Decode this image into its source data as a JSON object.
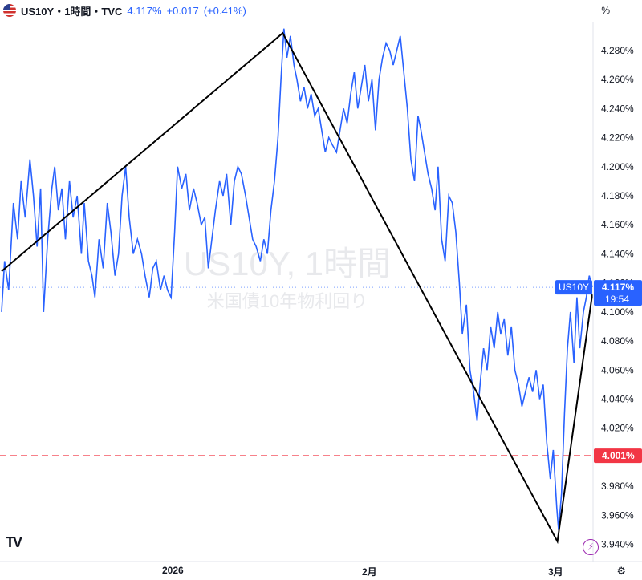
{
  "header": {
    "title": "US10Y・1時間・TVC",
    "last": "4.117%",
    "change": "+0.017",
    "change_pct": "(+0.41%)",
    "percent_toggle": "%"
  },
  "watermark": {
    "symbol": "US10Y, 1時間",
    "name": "米国債10年物利回り"
  },
  "price_tags": {
    "current_symbol": "US10Y",
    "current_value": "4.117%",
    "countdown": "19:54",
    "red_line_value": "4.001%"
  },
  "x_axis_labels": [
    "2026",
    "2月",
    "3月"
  ],
  "colors": {
    "line": "#2962ff",
    "red_line": "#f23645",
    "trend": "#000000",
    "tag_blue": "#2962ff",
    "tag_red": "#f23645"
  },
  "chart_data": {
    "type": "line",
    "title": "US10Y・1時間・TVC",
    "xlabel": "",
    "ylabel": "",
    "ylim": [
      3.93,
      4.298
    ],
    "y_ticks": [
      3.94,
      3.96,
      3.98,
      4.0,
      4.02,
      4.04,
      4.06,
      4.08,
      4.1,
      4.12,
      4.14,
      4.16,
      4.18,
      4.2,
      4.22,
      4.24,
      4.26,
      4.28
    ],
    "y_tick_labels": [
      "3.940%",
      "3.960%",
      "3.980%",
      "4.000%",
      "4.020%",
      "4.040%",
      "4.060%",
      "4.080%",
      "4.100%",
      "4.120%",
      "4.140%",
      "4.160%",
      "4.180%",
      "4.200%",
      "4.220%",
      "4.240%",
      "4.260%",
      "4.280%"
    ],
    "x_range": [
      0,
      100
    ],
    "x_ticks": [
      {
        "x": 29.3,
        "label": "2026"
      },
      {
        "x": 62.6,
        "label": "2月"
      },
      {
        "x": 94.1,
        "label": "3月"
      }
    ],
    "series": [
      {
        "values_xy": [
          [
            0,
            4.1
          ],
          [
            0.5,
            4.135
          ],
          [
            1.2,
            4.115
          ],
          [
            2,
            4.175
          ],
          [
            2.7,
            4.15
          ],
          [
            3.3,
            4.19
          ],
          [
            4,
            4.165
          ],
          [
            4.8,
            4.205
          ],
          [
            5.4,
            4.18
          ],
          [
            6,
            4.145
          ],
          [
            6.6,
            4.185
          ],
          [
            7.1,
            4.1
          ],
          [
            7.8,
            4.15
          ],
          [
            8.5,
            4.185
          ],
          [
            9,
            4.2
          ],
          [
            9.6,
            4.17
          ],
          [
            10.2,
            4.185
          ],
          [
            10.8,
            4.15
          ],
          [
            11.5,
            4.19
          ],
          [
            12.1,
            4.165
          ],
          [
            12.8,
            4.18
          ],
          [
            13.5,
            4.14
          ],
          [
            14,
            4.175
          ],
          [
            14.7,
            4.135
          ],
          [
            15.3,
            4.125
          ],
          [
            15.8,
            4.11
          ],
          [
            16.5,
            4.15
          ],
          [
            17.2,
            4.13
          ],
          [
            17.9,
            4.175
          ],
          [
            18.5,
            4.155
          ],
          [
            19.2,
            4.125
          ],
          [
            19.8,
            4.14
          ],
          [
            20.4,
            4.18
          ],
          [
            21,
            4.2
          ],
          [
            21.6,
            4.165
          ],
          [
            22.3,
            4.14
          ],
          [
            23,
            4.15
          ],
          [
            23.7,
            4.14
          ],
          [
            24.3,
            4.125
          ],
          [
            25,
            4.11
          ],
          [
            25.6,
            4.13
          ],
          [
            26.2,
            4.135
          ],
          [
            26.9,
            4.115
          ],
          [
            27.5,
            4.125
          ],
          [
            28.1,
            4.115
          ],
          [
            28.7,
            4.11
          ],
          [
            29.3,
            4.155
          ],
          [
            29.8,
            4.2
          ],
          [
            30.5,
            4.185
          ],
          [
            31.2,
            4.195
          ],
          [
            31.8,
            4.17
          ],
          [
            32.5,
            4.185
          ],
          [
            33.1,
            4.175
          ],
          [
            33.8,
            4.16
          ],
          [
            34.4,
            4.165
          ],
          [
            35,
            4.13
          ],
          [
            35.6,
            4.15
          ],
          [
            36.2,
            4.17
          ],
          [
            36.9,
            4.19
          ],
          [
            37.5,
            4.18
          ],
          [
            38.1,
            4.195
          ],
          [
            38.8,
            4.16
          ],
          [
            39.4,
            4.19
          ],
          [
            40,
            4.2
          ],
          [
            40.6,
            4.195
          ],
          [
            41.3,
            4.18
          ],
          [
            41.9,
            4.165
          ],
          [
            42.5,
            4.15
          ],
          [
            43.1,
            4.145
          ],
          [
            43.8,
            4.135
          ],
          [
            44.4,
            4.15
          ],
          [
            45,
            4.14
          ],
          [
            45.6,
            4.17
          ],
          [
            46.2,
            4.19
          ],
          [
            46.8,
            4.22
          ],
          [
            47.3,
            4.26
          ],
          [
            47.8,
            4.295
          ],
          [
            48.3,
            4.275
          ],
          [
            48.9,
            4.29
          ],
          [
            49.5,
            4.27
          ],
          [
            50,
            4.26
          ],
          [
            50.6,
            4.245
          ],
          [
            51.2,
            4.255
          ],
          [
            51.8,
            4.24
          ],
          [
            52.4,
            4.25
          ],
          [
            53,
            4.235
          ],
          [
            53.6,
            4.24
          ],
          [
            54.2,
            4.225
          ],
          [
            54.8,
            4.21
          ],
          [
            55.4,
            4.22
          ],
          [
            56,
            4.215
          ],
          [
            56.7,
            4.21
          ],
          [
            57.3,
            4.225
          ],
          [
            57.9,
            4.24
          ],
          [
            58.5,
            4.23
          ],
          [
            59.1,
            4.25
          ],
          [
            59.7,
            4.265
          ],
          [
            60.3,
            4.24
          ],
          [
            60.9,
            4.255
          ],
          [
            61.5,
            4.27
          ],
          [
            62.1,
            4.245
          ],
          [
            62.7,
            4.26
          ],
          [
            63.3,
            4.225
          ],
          [
            63.9,
            4.26
          ],
          [
            64.5,
            4.275
          ],
          [
            65.1,
            4.285
          ],
          [
            65.7,
            4.28
          ],
          [
            66.3,
            4.27
          ],
          [
            66.9,
            4.28
          ],
          [
            67.5,
            4.29
          ],
          [
            68.1,
            4.265
          ],
          [
            68.7,
            4.24
          ],
          [
            69.3,
            4.205
          ],
          [
            69.9,
            4.19
          ],
          [
            70.5,
            4.235
          ],
          [
            71,
            4.225
          ],
          [
            71.6,
            4.21
          ],
          [
            72.2,
            4.195
          ],
          [
            72.8,
            4.185
          ],
          [
            73.4,
            4.17
          ],
          [
            73.9,
            4.2
          ],
          [
            74.5,
            4.15
          ],
          [
            75.1,
            4.135
          ],
          [
            75.7,
            4.18
          ],
          [
            76.3,
            4.175
          ],
          [
            76.9,
            4.155
          ],
          [
            77.5,
            4.12
          ],
          [
            78,
            4.085
          ],
          [
            78.7,
            4.105
          ],
          [
            79.3,
            4.06
          ],
          [
            79.9,
            4.045
          ],
          [
            80.5,
            4.025
          ],
          [
            81,
            4.05
          ],
          [
            81.6,
            4.075
          ],
          [
            82.2,
            4.06
          ],
          [
            82.8,
            4.09
          ],
          [
            83.4,
            4.075
          ],
          [
            84,
            4.1
          ],
          [
            84.5,
            4.085
          ],
          [
            85.1,
            4.095
          ],
          [
            85.7,
            4.07
          ],
          [
            86.3,
            4.09
          ],
          [
            86.9,
            4.06
          ],
          [
            87.5,
            4.05
          ],
          [
            88.1,
            4.035
          ],
          [
            88.7,
            4.045
          ],
          [
            89.3,
            4.055
          ],
          [
            89.9,
            4.045
          ],
          [
            90.5,
            4.06
          ],
          [
            91.1,
            4.04
          ],
          [
            91.7,
            4.05
          ],
          [
            92.3,
            4.01
          ],
          [
            92.9,
            3.985
          ],
          [
            93.4,
            4.005
          ],
          [
            94.0,
            3.965
          ],
          [
            94.3,
            3.95
          ],
          [
            94.8,
            3.975
          ],
          [
            95.3,
            4.03
          ],
          [
            95.8,
            4.075
          ],
          [
            96.3,
            4.1
          ],
          [
            96.9,
            4.065
          ],
          [
            97.4,
            4.11
          ],
          [
            97.9,
            4.075
          ],
          [
            98.5,
            4.1
          ],
          [
            99,
            4.11
          ],
          [
            99.5,
            4.125
          ],
          [
            100,
            4.117
          ]
        ]
      }
    ],
    "horizontal_line": 4.001,
    "trend_lines": [
      {
        "points": [
          [
            0,
            4.128
          ],
          [
            47.6,
            4.292
          ],
          [
            94.1,
            3.942
          ],
          [
            100,
            4.112
          ]
        ]
      }
    ]
  }
}
